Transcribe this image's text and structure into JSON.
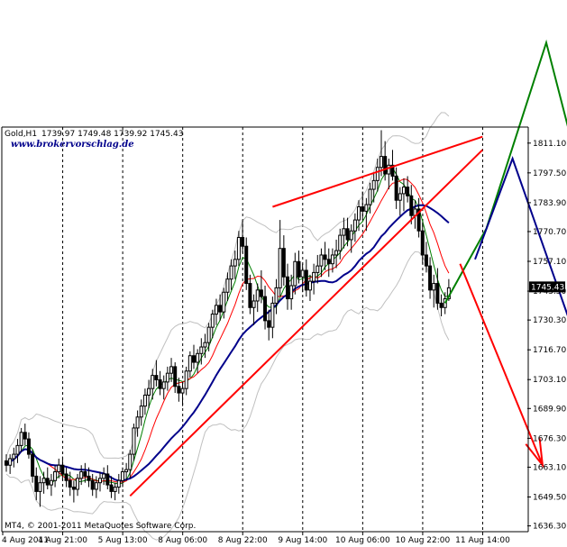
{
  "header": {
    "symbol": "Gold,H1",
    "ohlc": "1739.97 1749.48 1739.92 1745.43",
    "website": "www.brokervorschlag.de"
  },
  "footer": {
    "copyright": "MT4, © 2001-2011 MetaQuotes Software Corp."
  },
  "chart_data": {
    "type": "candlestick",
    "title": "Gold,H1",
    "symbol": "Gold",
    "timeframe": "H1",
    "last_ohlc": {
      "open": 1739.97,
      "high": 1749.48,
      "low": 1739.92,
      "close": 1745.43
    },
    "current_price_label": "1745.43",
    "ylim": [
      1632,
      1826
    ],
    "y_ticks": [
      "1811.10",
      "1797.50",
      "1783.90",
      "1770.70",
      "1757.10",
      "1743.50",
      "1730.30",
      "1716.70",
      "1703.10",
      "1689.90",
      "1676.30",
      "1663.10",
      "1649.50",
      "1636.30"
    ],
    "x_ticks": [
      "4 Aug 2011",
      "4 Aug 21:00",
      "5 Aug 13:00",
      "8 Aug 06:00",
      "8 Aug 22:00",
      "9 Aug 14:00",
      "10 Aug 06:00",
      "10 Aug 22:00",
      "11 Aug 14:00"
    ],
    "n_slots": 128,
    "candles": [
      [
        1666,
        1669,
        1661,
        1664
      ],
      [
        1664,
        1669,
        1660,
        1667
      ],
      [
        1667,
        1672,
        1663,
        1669
      ],
      [
        1669,
        1676,
        1665,
        1673
      ],
      [
        1673,
        1681,
        1670,
        1679
      ],
      [
        1679,
        1683,
        1673,
        1676
      ],
      [
        1676,
        1679,
        1667,
        1669
      ],
      [
        1669,
        1671,
        1656,
        1659
      ],
      [
        1659,
        1663,
        1648,
        1652
      ],
      [
        1652,
        1659,
        1645,
        1656
      ],
      [
        1656,
        1661,
        1651,
        1658
      ],
      [
        1658,
        1663,
        1653,
        1655
      ],
      [
        1655,
        1660,
        1650,
        1657
      ],
      [
        1657,
        1664,
        1654,
        1661
      ],
      [
        1661,
        1667,
        1658,
        1664
      ],
      [
        1664,
        1668,
        1657,
        1660
      ],
      [
        1660,
        1663,
        1654,
        1657
      ],
      [
        1657,
        1661,
        1650,
        1654
      ],
      [
        1654,
        1657,
        1647,
        1653
      ],
      [
        1653,
        1660,
        1650,
        1658
      ],
      [
        1658,
        1664,
        1655,
        1661
      ],
      [
        1661,
        1665,
        1656,
        1659
      ],
      [
        1659,
        1663,
        1654,
        1657
      ],
      [
        1657,
        1660,
        1650,
        1653
      ],
      [
        1653,
        1659,
        1649,
        1656
      ],
      [
        1656,
        1661,
        1652,
        1658
      ],
      [
        1658,
        1663,
        1655,
        1660
      ],
      [
        1660,
        1664,
        1653,
        1655
      ],
      [
        1655,
        1659,
        1649,
        1652
      ],
      [
        1652,
        1656,
        1648,
        1654
      ],
      [
        1654,
        1660,
        1651,
        1657
      ],
      [
        1657,
        1663,
        1654,
        1661
      ],
      [
        1661,
        1665,
        1657,
        1662
      ],
      [
        1662,
        1671,
        1658,
        1669
      ],
      [
        1669,
        1683,
        1666,
        1681
      ],
      [
        1681,
        1689,
        1677,
        1686
      ],
      [
        1686,
        1694,
        1682,
        1691
      ],
      [
        1691,
        1699,
        1687,
        1696
      ],
      [
        1696,
        1703,
        1690,
        1699
      ],
      [
        1699,
        1708,
        1694,
        1705
      ],
      [
        1705,
        1712,
        1700,
        1703
      ],
      [
        1703,
        1707,
        1696,
        1699
      ],
      [
        1699,
        1705,
        1694,
        1702
      ],
      [
        1702,
        1709,
        1698,
        1706
      ],
      [
        1706,
        1713,
        1702,
        1709
      ],
      [
        1709,
        1711,
        1697,
        1700
      ],
      [
        1700,
        1704,
        1693,
        1697
      ],
      [
        1697,
        1702,
        1691,
        1699
      ],
      [
        1699,
        1709,
        1696,
        1707
      ],
      [
        1707,
        1716,
        1704,
        1714
      ],
      [
        1714,
        1719,
        1708,
        1711
      ],
      [
        1711,
        1717,
        1706,
        1715
      ],
      [
        1715,
        1722,
        1710,
        1718
      ],
      [
        1718,
        1724,
        1713,
        1720
      ],
      [
        1720,
        1729,
        1716,
        1727
      ],
      [
        1727,
        1735,
        1722,
        1733
      ],
      [
        1733,
        1740,
        1728,
        1737
      ],
      [
        1737,
        1742,
        1730,
        1734
      ],
      [
        1734,
        1745,
        1731,
        1743
      ],
      [
        1743,
        1752,
        1739,
        1749
      ],
      [
        1749,
        1758,
        1744,
        1755
      ],
      [
        1755,
        1762,
        1749,
        1758
      ],
      [
        1758,
        1771,
        1755,
        1768
      ],
      [
        1768,
        1776,
        1761,
        1764
      ],
      [
        1764,
        1768,
        1744,
        1747
      ],
      [
        1747,
        1751,
        1733,
        1736
      ],
      [
        1736,
        1742,
        1728,
        1739
      ],
      [
        1739,
        1747,
        1734,
        1744
      ],
      [
        1744,
        1753,
        1738,
        1741
      ],
      [
        1741,
        1746,
        1726,
        1730
      ],
      [
        1730,
        1735,
        1721,
        1727
      ],
      [
        1727,
        1741,
        1722,
        1738
      ],
      [
        1738,
        1749,
        1733,
        1745
      ],
      [
        1745,
        1776,
        1741,
        1763
      ],
      [
        1763,
        1769,
        1746,
        1750
      ],
      [
        1750,
        1756,
        1735,
        1740
      ],
      [
        1740,
        1751,
        1735,
        1746
      ],
      [
        1746,
        1761,
        1742,
        1757
      ],
      [
        1757,
        1762,
        1747,
        1750
      ],
      [
        1750,
        1756,
        1743,
        1753
      ],
      [
        1753,
        1758,
        1741,
        1744
      ],
      [
        1744,
        1751,
        1739,
        1748
      ],
      [
        1748,
        1756,
        1742,
        1752
      ],
      [
        1752,
        1760,
        1747,
        1755
      ],
      [
        1755,
        1763,
        1750,
        1760
      ],
      [
        1760,
        1766,
        1753,
        1758
      ],
      [
        1758,
        1763,
        1750,
        1756
      ],
      [
        1756,
        1763,
        1752,
        1760
      ],
      [
        1760,
        1767,
        1754,
        1762
      ],
      [
        1762,
        1772,
        1758,
        1769
      ],
      [
        1769,
        1777,
        1763,
        1772
      ],
      [
        1772,
        1777,
        1764,
        1767
      ],
      [
        1767,
        1774,
        1761,
        1771
      ],
      [
        1771,
        1779,
        1766,
        1776
      ],
      [
        1776,
        1785,
        1771,
        1782
      ],
      [
        1782,
        1789,
        1776,
        1780
      ],
      [
        1780,
        1786,
        1771,
        1783
      ],
      [
        1783,
        1793,
        1779,
        1790
      ],
      [
        1790,
        1797,
        1784,
        1794
      ],
      [
        1794,
        1804,
        1789,
        1800
      ],
      [
        1800,
        1817,
        1796,
        1805
      ],
      [
        1805,
        1812,
        1794,
        1797
      ],
      [
        1797,
        1804,
        1790,
        1801
      ],
      [
        1801,
        1808,
        1794,
        1796
      ],
      [
        1796,
        1800,
        1781,
        1785
      ],
      [
        1785,
        1791,
        1778,
        1788
      ],
      [
        1788,
        1795,
        1780,
        1791
      ],
      [
        1791,
        1796,
        1784,
        1787
      ],
      [
        1787,
        1792,
        1774,
        1778
      ],
      [
        1778,
        1785,
        1772,
        1781
      ],
      [
        1781,
        1786,
        1768,
        1771
      ],
      [
        1771,
        1775,
        1756,
        1760
      ],
      [
        1760,
        1766,
        1752,
        1755
      ],
      [
        1755,
        1759,
        1740,
        1744
      ],
      [
        1744,
        1751,
        1736,
        1747
      ],
      [
        1747,
        1754,
        1735,
        1738
      ],
      [
        1738,
        1742,
        1732,
        1736
      ],
      [
        1736,
        1743,
        1733,
        1740
      ],
      [
        1740,
        1749,
        1739,
        1745
      ]
    ],
    "overlays": [
      {
        "name": "SMA fast",
        "color": "#008000"
      },
      {
        "name": "SMA mid",
        "color": "#ff0000"
      },
      {
        "name": "SMA slow",
        "color": "#00008b"
      },
      {
        "name": "Bollinger Bands",
        "color": "#c0c0c0"
      }
    ],
    "annotations": [
      {
        "type": "trendline",
        "color": "#ff0000",
        "from": [
          33,
          1650
        ],
        "to": [
          127,
          1808
        ]
      },
      {
        "type": "trendline",
        "color": "#ff0000",
        "from": [
          71,
          1782
        ],
        "to": [
          127,
          1814
        ]
      },
      {
        "type": "projection",
        "color": "#008000",
        "path": [
          [
            117,
            1738
          ],
          [
            128,
            1772
          ],
          [
            144,
            1857
          ],
          [
            150,
            1817
          ]
        ]
      },
      {
        "type": "projection",
        "color": "#00008b",
        "path": [
          [
            125,
            1758
          ],
          [
            135,
            1804
          ],
          [
            151,
            1726
          ]
        ]
      },
      {
        "type": "projection",
        "color": "#ff0000",
        "path": [
          [
            121,
            1756
          ],
          [
            143,
            1664
          ]
        ],
        "arrow": true
      }
    ],
    "grid": "vertical dashed separators at each date tick",
    "axis_position": "right"
  }
}
